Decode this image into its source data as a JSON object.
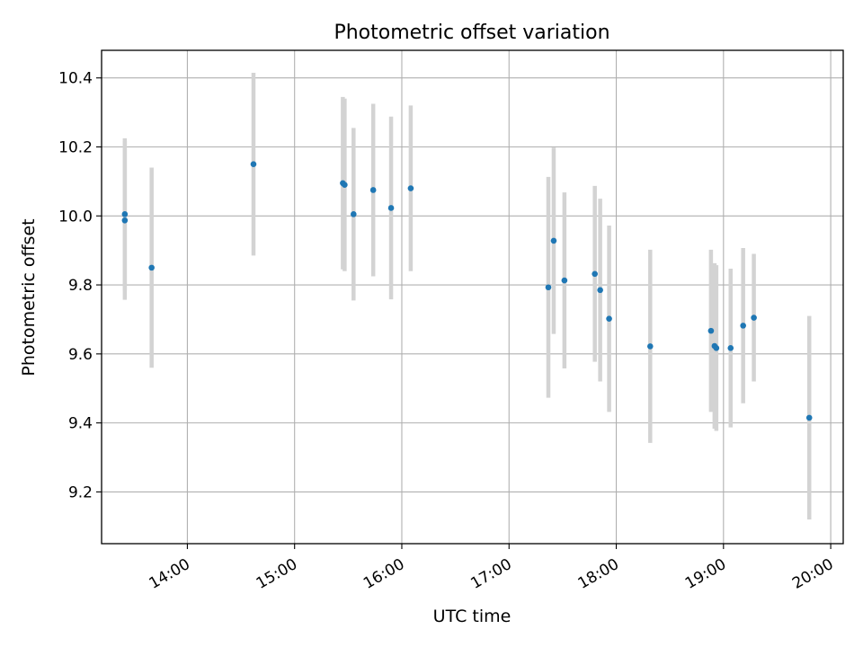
{
  "chart_data": {
    "type": "scatter",
    "title": "Photometric offset variation",
    "xlabel": "UTC time",
    "ylabel": "Photometric offset",
    "x_unit": "UTC time of day (HH:MM)",
    "xlim": [
      "13:12",
      "20:07"
    ],
    "ylim": [
      9.05,
      10.48
    ],
    "x_ticks": [
      "14:00",
      "15:00",
      "16:00",
      "17:00",
      "18:00",
      "19:00",
      "20:00"
    ],
    "y_ticks": [
      "9.2",
      "9.4",
      "9.6",
      "9.8",
      "10.0",
      "10.2",
      "10.4"
    ],
    "y_tick_values": [
      9.2,
      9.4,
      9.6,
      9.8,
      10.0,
      10.2,
      10.4
    ],
    "grid": true,
    "series": [
      {
        "color": "#1f77b4",
        "error_color": "#d3d3d3",
        "points": [
          {
            "x": "13:25",
            "y": 10.005,
            "err": 0.22
          },
          {
            "x": "13:25",
            "y": 9.987,
            "err": 0.23
          },
          {
            "x": "13:40",
            "y": 9.85,
            "err": 0.29
          },
          {
            "x": "14:37",
            "y": 10.15,
            "err": 0.265
          },
          {
            "x": "15:27",
            "y": 10.095,
            "err": 0.25
          },
          {
            "x": "15:28",
            "y": 10.09,
            "err": 0.25
          },
          {
            "x": "15:33",
            "y": 10.005,
            "err": 0.25
          },
          {
            "x": "15:44",
            "y": 10.075,
            "err": 0.25
          },
          {
            "x": "15:54",
            "y": 10.023,
            "err": 0.265
          },
          {
            "x": "16:05",
            "y": 10.08,
            "err": 0.24
          },
          {
            "x": "17:22",
            "y": 9.793,
            "err": 0.32
          },
          {
            "x": "17:25",
            "y": 9.928,
            "err": 0.27
          },
          {
            "x": "17:31",
            "y": 9.813,
            "err": 0.255
          },
          {
            "x": "17:48",
            "y": 9.832,
            "err": 0.255
          },
          {
            "x": "17:51",
            "y": 9.785,
            "err": 0.265
          },
          {
            "x": "17:56",
            "y": 9.702,
            "err": 0.27
          },
          {
            "x": "18:19",
            "y": 9.622,
            "err": 0.28
          },
          {
            "x": "18:53",
            "y": 9.667,
            "err": 0.235
          },
          {
            "x": "18:55",
            "y": 9.623,
            "err": 0.24
          },
          {
            "x": "18:56",
            "y": 9.617,
            "err": 0.24
          },
          {
            "x": "19:04",
            "y": 9.617,
            "err": 0.23
          },
          {
            "x": "19:11",
            "y": 9.682,
            "err": 0.225
          },
          {
            "x": "19:17",
            "y": 9.705,
            "err": 0.185
          },
          {
            "x": "19:48",
            "y": 9.415,
            "err": 0.295
          }
        ]
      }
    ]
  }
}
